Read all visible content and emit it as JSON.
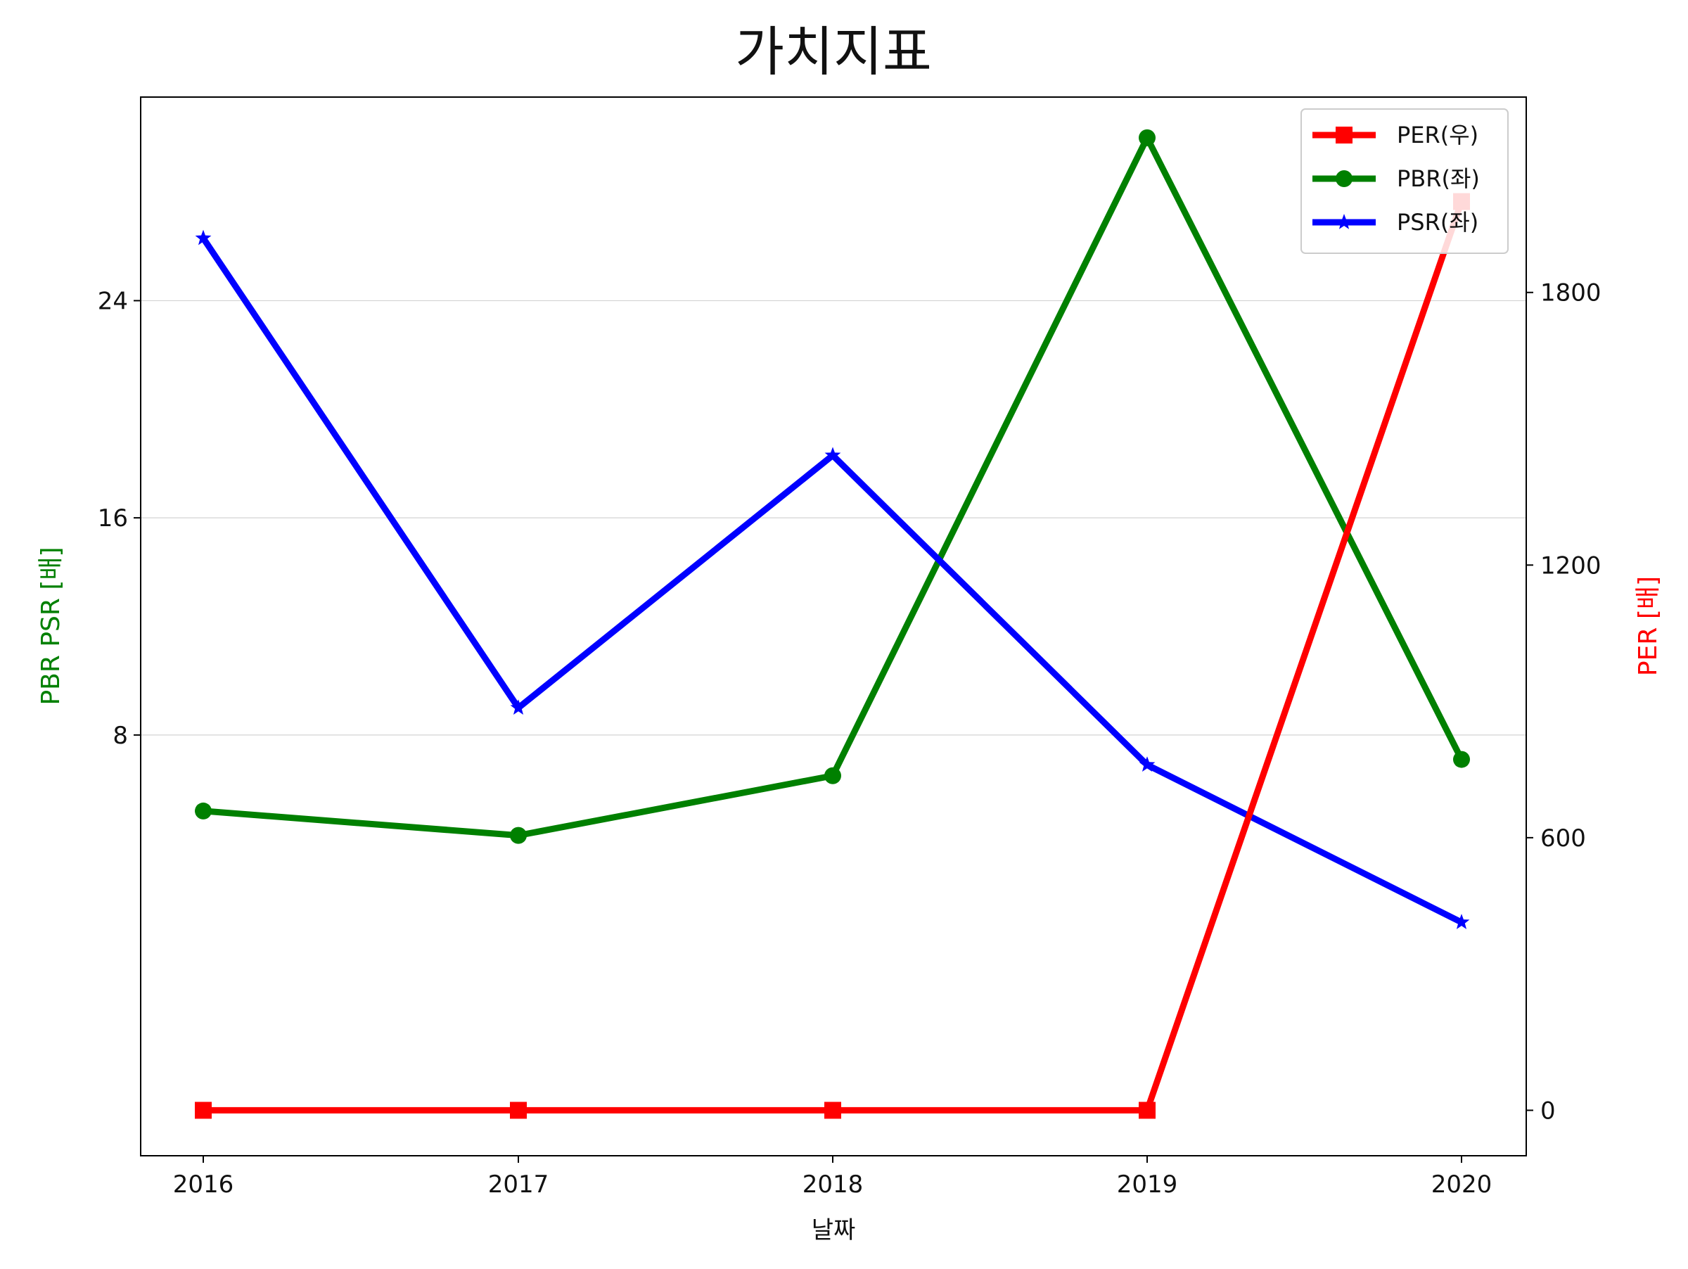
{
  "chart_data": {
    "type": "line",
    "title": "가치지표",
    "xlabel": "날짜",
    "ylabel_left": "PBR PSR [배]",
    "ylabel_right": "PER [배]",
    "categories": [
      "2016",
      "2017",
      "2018",
      "2019",
      "2020"
    ],
    "y_left": {
      "lim": [
        -7.5,
        31.5
      ],
      "ticks": [
        8,
        16,
        24
      ],
      "tick_labels": [
        "8",
        "16",
        "24"
      ],
      "grid": true
    },
    "y_right": {
      "lim": [
        -100,
        2230
      ],
      "ticks": [
        0,
        600,
        1200,
        1800
      ],
      "tick_labels": [
        "0",
        "600",
        "1200",
        "1800"
      ]
    },
    "series": [
      {
        "name": "PER(우)",
        "axis": "right",
        "color": "#ff0000",
        "marker": "square",
        "values": [
          0,
          0,
          0,
          0,
          2000
        ]
      },
      {
        "name": "PBR(좌)",
        "axis": "left",
        "color": "#008000",
        "marker": "circle",
        "values": [
          5.2,
          4.3,
          6.5,
          30.0,
          7.1
        ]
      },
      {
        "name": "PSR(좌)",
        "axis": "left",
        "color": "#0000ff",
        "marker": "star",
        "values": [
          26.3,
          9.0,
          18.3,
          6.9,
          1.1
        ]
      }
    ],
    "legend_position": "top-right",
    "colors": {
      "left_axis_label": "#008000",
      "right_axis_label": "#ff0000",
      "grid": "#d3d3d3"
    }
  }
}
